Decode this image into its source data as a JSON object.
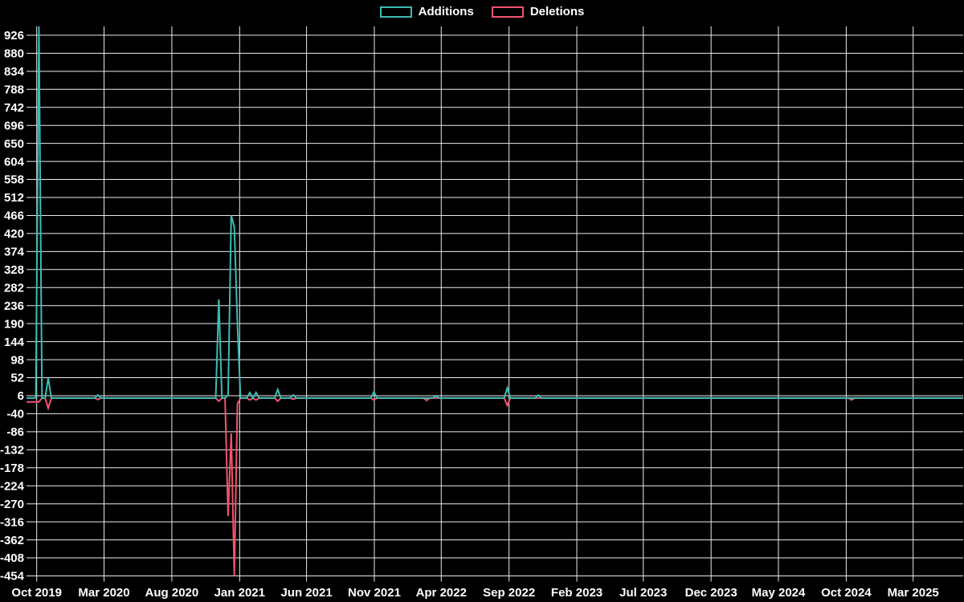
{
  "legend": {
    "items": [
      {
        "label": "Additions",
        "color_key": "additions"
      },
      {
        "label": "Deletions",
        "color_key": "deletions"
      }
    ]
  },
  "colors": {
    "additions": "#3bbcb4",
    "deletions": "#f0546e",
    "background": "#000000",
    "grid": "#ebebeb",
    "text": "#ffffff"
  },
  "chart_data": {
    "type": "line",
    "title": "",
    "description": "Weekly code additions (positive, teal) and deletions (negative, pink) over time",
    "legend_position": "top-center",
    "grid": true,
    "x_tick_labels": [
      "Oct 2019",
      "Mar 2020",
      "Aug 2020",
      "Jan 2021",
      "Jun 2021",
      "Nov 2021",
      "Apr 2022",
      "Sep 2022",
      "Feb 2023",
      "Jul 2023",
      "Dec 2023",
      "May 2024",
      "Oct 2024",
      "Mar 2025"
    ],
    "x_tick_start_date": "2019-10-01",
    "x_tick_interval_months": 5,
    "y_tick_values": [
      926,
      880,
      834,
      788,
      742,
      696,
      650,
      604,
      558,
      512,
      466,
      420,
      374,
      328,
      282,
      236,
      190,
      144,
      98,
      52,
      6,
      -40,
      -86,
      -132,
      -178,
      -224,
      -270,
      -316,
      -362,
      -408,
      -454
    ],
    "y_range": [
      -454,
      949
    ],
    "x_range_weeks": {
      "start": "2019-09-08",
      "end": "2025-06-22",
      "step_days": 7
    },
    "baseline_value": 0,
    "series": [
      {
        "name": "Additions",
        "color_key": "additions",
        "all_other_weeks": 0,
        "nonzero_weeks": {
          "2019-10-06": 949,
          "2019-10-27": 52,
          "2020-02-16": 8,
          "2020-11-15": 252,
          "2020-12-06": 8,
          "2020-12-13": 466,
          "2020-12-20": 437,
          "2020-12-27": 190,
          "2021-01-24": 14,
          "2021-02-07": 14,
          "2021-03-28": 22,
          "2021-05-02": 8,
          "2021-10-31": 16,
          "2022-03-20": 6,
          "2022-08-28": 26,
          "2022-11-06": 8
        }
      },
      {
        "name": "Deletions",
        "color_key": "deletions",
        "all_other_weeks": 0,
        "nonzero_weeks": {
          "2019-09-08": -10,
          "2019-09-15": -10,
          "2019-09-22": -10,
          "2019-09-29": -10,
          "2019-10-06": -10,
          "2019-10-27": -26,
          "2020-02-16": -4,
          "2020-11-15": -8,
          "2020-12-06": -301,
          "2020-12-13": -90,
          "2020-12-20": -454,
          "2020-12-27": -15,
          "2021-01-24": -5,
          "2021-02-07": -5,
          "2021-03-28": -8,
          "2021-05-02": -3,
          "2021-10-31": -5,
          "2022-02-27": -6,
          "2022-08-28": -19,
          "2024-10-13": -5
        }
      }
    ]
  }
}
